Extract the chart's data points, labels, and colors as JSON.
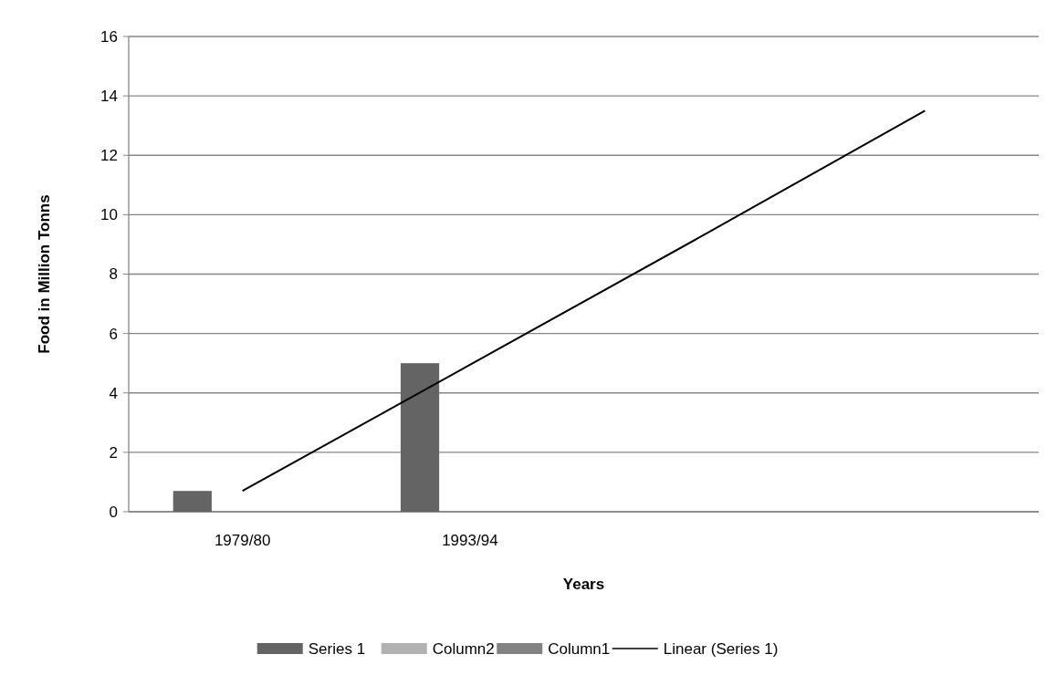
{
  "chart_data": {
    "type": "bar",
    "xlabel": "Years",
    "ylabel": "Food in Million Tonns",
    "categories": [
      "1979/80",
      "1993/94",
      null,
      null
    ],
    "series": [
      {
        "name": "Series 1",
        "color": "#646464",
        "values": [
          0.7,
          5,
          null,
          null
        ]
      },
      {
        "name": "Column2",
        "color": "#b2b2b2",
        "values": [
          null,
          null,
          null,
          null
        ]
      },
      {
        "name": "Column1",
        "color": "#828282",
        "values": [
          null,
          null,
          null,
          null
        ]
      },
      {
        "name": "Linear (Series 1)",
        "type": "line",
        "color": "#000000",
        "values": [
          0.7,
          4.95,
          9.2,
          13.5
        ]
      }
    ],
    "ylim": [
      0,
      16
    ],
    "yticks": [
      0,
      2,
      4,
      6,
      8,
      10,
      12,
      14,
      16
    ],
    "grid": "y",
    "legend": "bottom"
  }
}
